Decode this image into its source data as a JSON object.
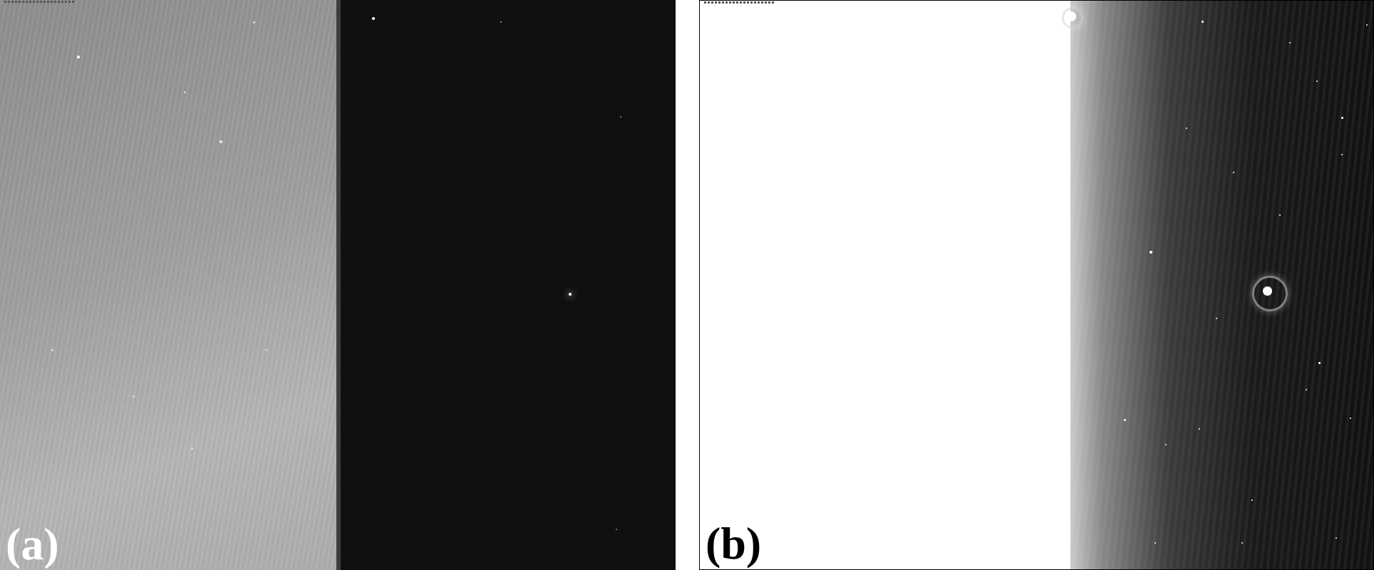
{
  "figure": {
    "panels": [
      {
        "id": "a",
        "label": "(a)"
      },
      {
        "id": "b",
        "label": "(b)"
      }
    ],
    "colors": {
      "panel_a_left_gray": "#a0a0a0",
      "panel_a_right_dark": "#101010",
      "panel_b_saturated": "#ffffff",
      "panel_b_dark": "#111111",
      "label_a_color": "#ffffff",
      "label_b_color": "#000000"
    }
  }
}
